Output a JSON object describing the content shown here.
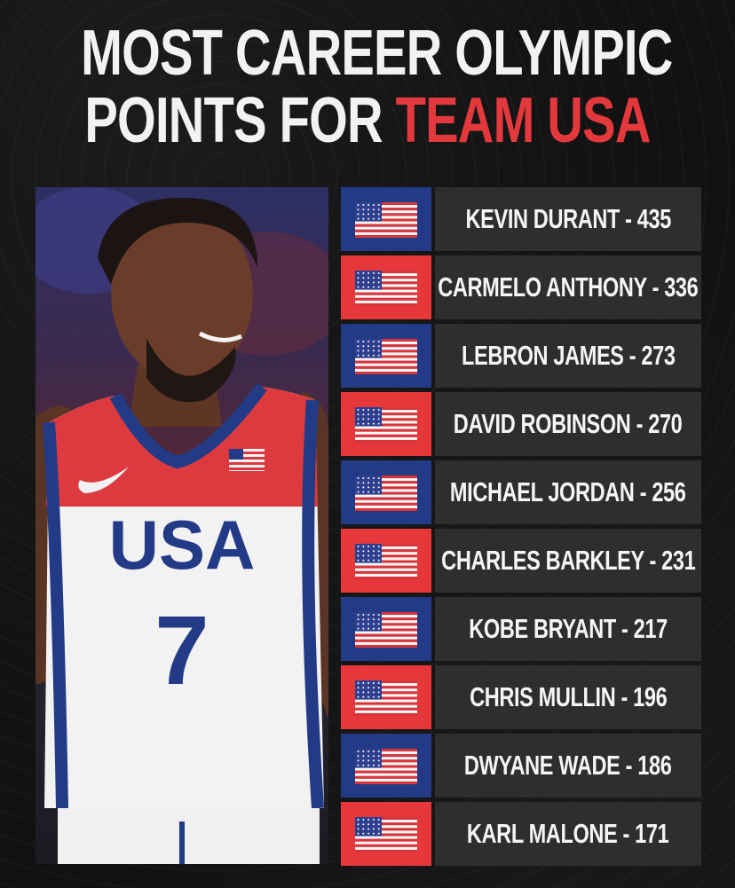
{
  "title": {
    "line1": "MOST CAREER OLYMPIC",
    "line2_prefix": "POINTS FOR ",
    "line2_accent": "TEAM USA"
  },
  "photo": {
    "jersey_text": "USA",
    "jersey_number": "7"
  },
  "colors": {
    "accent_red": "#e4393c",
    "flag_blue": "#233a86",
    "flag_red": "#e6383b",
    "row_bg": "#2e2e2e"
  },
  "rows": [
    {
      "label": "KEVIN DURANT - 435",
      "flag_bg": "blue"
    },
    {
      "label": "CARMELO ANTHONY - 336",
      "flag_bg": "red"
    },
    {
      "label": "LEBRON JAMES - 273",
      "flag_bg": "blue"
    },
    {
      "label": "DAVID ROBINSON - 270",
      "flag_bg": "red"
    },
    {
      "label": "MICHAEL JORDAN - 256",
      "flag_bg": "blue"
    },
    {
      "label": "CHARLES BARKLEY - 231",
      "flag_bg": "red"
    },
    {
      "label": "KOBE BRYANT - 217",
      "flag_bg": "blue"
    },
    {
      "label": "CHRIS MULLIN - 196",
      "flag_bg": "red"
    },
    {
      "label": "DWYANE WADE - 186",
      "flag_bg": "blue"
    },
    {
      "label": "KARL MALONE - 171",
      "flag_bg": "red"
    }
  ]
}
